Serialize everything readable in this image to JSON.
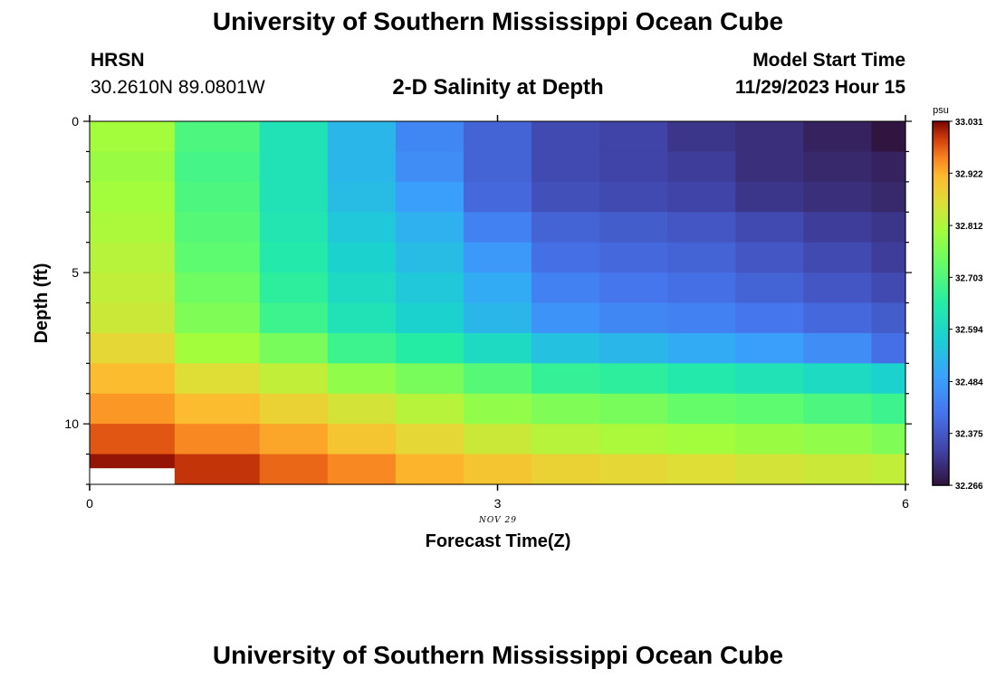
{
  "header": {
    "title": "University of Southern Mississippi Ocean Cube",
    "station": "HRSN",
    "coords": "30.2610N  89.0801W",
    "chart_title": "2-D Salinity at Depth",
    "model_label": "Model Start Time",
    "model_time": "11/29/2023 Hour 15"
  },
  "footer": {
    "title": "University of Southern Mississippi Ocean Cube"
  },
  "chart_data": {
    "type": "heatmap",
    "title": "2-D Salinity at Depth",
    "xlabel": "Forecast Time(Z)",
    "ylabel": "Depth (ft)",
    "xlim": [
      0,
      6
    ],
    "ylim": [
      0,
      12
    ],
    "y_inverted": true,
    "x_ticks": [
      "0",
      "3",
      "6"
    ],
    "y_ticks": [
      "0",
      "5",
      "10"
    ],
    "date_label": "NOV 29",
    "colorbar": {
      "unit": "psu",
      "range": [
        32.266,
        33.031
      ],
      "ticks": [
        "32.266",
        "32.375",
        "32.484",
        "32.594",
        "32.703",
        "32.812",
        "32.922",
        "33.031"
      ]
    },
    "x_columns": [
      0.25,
      1,
      1.5,
      2,
      2.5,
      3,
      3.5,
      4,
      4.5,
      5,
      5.5,
      6
    ],
    "depth_rows": [
      0.5,
      1.5,
      2.5,
      3.5,
      4.5,
      5.5,
      6.5,
      7.5,
      8.5,
      9.5,
      10.5,
      11.5
    ],
    "values": [
      [
        32.8,
        32.7,
        32.62,
        32.53,
        32.45,
        32.39,
        32.35,
        32.34,
        32.32,
        32.31,
        32.29,
        32.27
      ],
      [
        32.79,
        32.69,
        32.62,
        32.53,
        32.46,
        32.39,
        32.35,
        32.34,
        32.33,
        32.31,
        32.3,
        32.29
      ],
      [
        32.8,
        32.7,
        32.62,
        32.54,
        32.49,
        32.4,
        32.36,
        32.35,
        32.34,
        32.32,
        32.31,
        32.3
      ],
      [
        32.81,
        32.71,
        32.63,
        32.56,
        32.52,
        32.44,
        32.39,
        32.38,
        32.37,
        32.35,
        32.33,
        32.32
      ],
      [
        32.82,
        32.72,
        32.64,
        32.58,
        32.54,
        32.48,
        32.41,
        32.4,
        32.39,
        32.37,
        32.35,
        32.33
      ],
      [
        32.83,
        32.74,
        32.66,
        32.6,
        32.56,
        32.51,
        32.44,
        32.42,
        32.41,
        32.39,
        32.37,
        32.35
      ],
      [
        32.84,
        32.76,
        32.68,
        32.62,
        32.58,
        32.53,
        32.47,
        32.45,
        32.44,
        32.42,
        32.4,
        32.38
      ],
      [
        32.87,
        32.8,
        32.75,
        32.68,
        32.65,
        32.6,
        32.55,
        32.53,
        32.51,
        32.49,
        32.46,
        32.41
      ],
      [
        32.91,
        32.86,
        32.83,
        32.78,
        32.75,
        32.71,
        32.67,
        32.66,
        32.64,
        32.62,
        32.6,
        32.58
      ],
      [
        32.94,
        32.91,
        32.88,
        32.85,
        32.82,
        32.78,
        32.76,
        32.75,
        32.73,
        32.72,
        32.7,
        32.68
      ],
      [
        32.98,
        32.95,
        32.93,
        32.9,
        32.87,
        32.84,
        32.82,
        32.81,
        32.8,
        32.79,
        32.78,
        32.76
      ],
      [
        33.02,
        33.0,
        32.97,
        32.95,
        32.92,
        32.9,
        32.88,
        32.87,
        32.86,
        32.85,
        32.84,
        32.83
      ]
    ]
  }
}
